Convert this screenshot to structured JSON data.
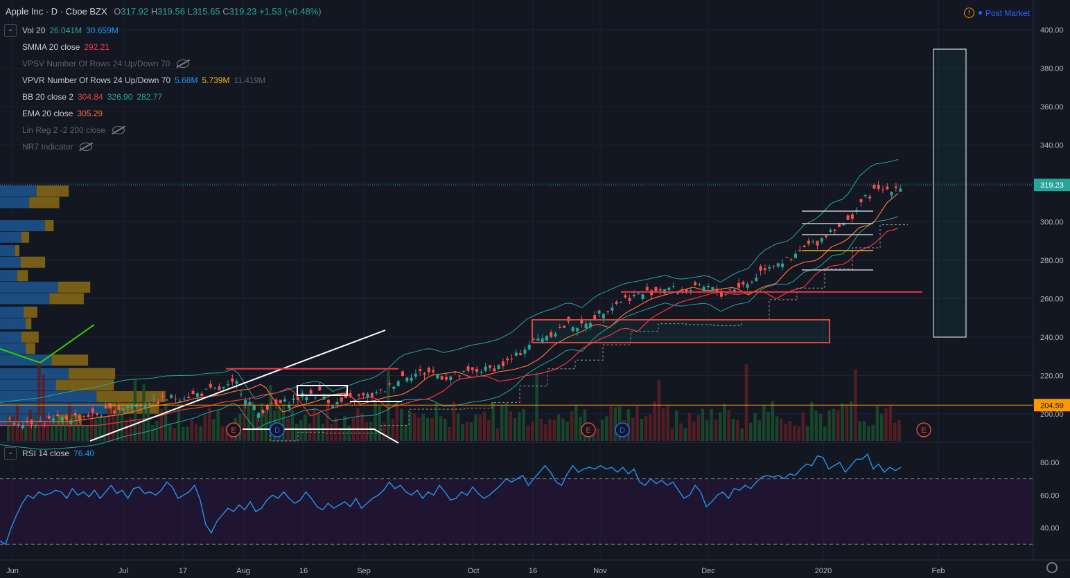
{
  "header": {
    "symbol": "Apple Inc · D · Cboe BZX",
    "o_label": "O",
    "o": "317.92",
    "h_label": "H",
    "h": "319.56",
    "l_label": "L",
    "l": "315.65",
    "c_label": "C",
    "c": "319.23",
    "change": "+1.53 (+0.48%)"
  },
  "post_market": "Post Market",
  "indicators": [
    {
      "name": "Vol 20",
      "values": [
        "26.041M",
        "30.659M"
      ],
      "colors": [
        "#26a69a",
        "#2196f3"
      ],
      "hidden": false
    },
    {
      "name": "SMMA 20 close",
      "values": [
        "292.21"
      ],
      "colors": [
        "#f23645"
      ],
      "hidden": false
    },
    {
      "name": "VPSV Number Of Rows 24 Up/Down 70",
      "values": [],
      "colors": [],
      "hidden": true
    },
    {
      "name": "VPVR Number Of Rows 24 Up/Down 70",
      "values": [
        "5.68M",
        "5.739M",
        "11.419M"
      ],
      "colors": [
        "#2196f3",
        "#f0b90b",
        "#5d606b"
      ],
      "hidden": false
    },
    {
      "name": "BB 20 close 2",
      "values": [
        "304.84",
        "326.90",
        "282.77"
      ],
      "colors": [
        "#e0443f",
        "#26a69a",
        "#26a69a"
      ],
      "hidden": false
    },
    {
      "name": "EMA 20 close",
      "values": [
        "305.29"
      ],
      "colors": [
        "#ff6d3a"
      ],
      "hidden": false
    },
    {
      "name": "Lin Reg 2 -2 200 close",
      "values": [],
      "colors": [],
      "hidden": true
    },
    {
      "name": "NR7 Indicator",
      "values": [],
      "colors": [],
      "hidden": true
    }
  ],
  "rsi_legend": {
    "name": "RSI 14 close",
    "value": "76.40"
  },
  "colors": {
    "background": "#131722",
    "up": "#26a69a",
    "down": "#ef5350",
    "price_tag": "#26a69a",
    "support_tag": "#ff9800",
    "rsi": "#2196f3",
    "rsi_band": "#1f1530"
  },
  "chart_data": [
    {
      "type": "candlestick",
      "title": "Apple Inc · D · Cboe BZX",
      "x_ticks": [
        "Jun",
        "Jul",
        "17",
        "Aug",
        "16",
        "Sep",
        "Oct",
        "16",
        "Nov",
        "Dec",
        "2020",
        "Feb"
      ],
      "y_ticks": [
        "400.00",
        "380.00",
        "360.00",
        "340.00",
        "320.00",
        "300.00",
        "280.00",
        "260.00",
        "240.00",
        "220.00",
        "200.00"
      ],
      "ylim": [
        187,
        404
      ],
      "last_price": 319.23,
      "last_price_label": "319.23",
      "support_level": 204.59,
      "support_label": "204.59",
      "resistance_level": 263.5,
      "close_path": [
        [
          0,
          196
        ],
        [
          40,
          196
        ],
        [
          60,
          196
        ],
        [
          80,
          197
        ],
        [
          100,
          198
        ],
        [
          120,
          199
        ],
        [
          140,
          200
        ],
        [
          160,
          202
        ],
        [
          180,
          204
        ],
        [
          200,
          205
        ],
        [
          220,
          206
        ],
        [
          240,
          208
        ],
        [
          260,
          209
        ],
        [
          280,
          210
        ],
        [
          300,
          212
        ],
        [
          320,
          213
        ],
        [
          340,
          216
        ],
        [
          350,
          210
        ],
        [
          360,
          205
        ],
        [
          370,
          200
        ],
        [
          380,
          203
        ],
        [
          400,
          205
        ],
        [
          420,
          207
        ],
        [
          440,
          210
        ],
        [
          460,
          211
        ],
        [
          480,
          205
        ],
        [
          500,
          207
        ],
        [
          520,
          209
        ],
        [
          540,
          210
        ],
        [
          560,
          214
        ],
        [
          580,
          220
        ],
        [
          600,
          221
        ],
        [
          620,
          222
        ],
        [
          640,
          219
        ],
        [
          660,
          220
        ],
        [
          680,
          222
        ],
        [
          700,
          223
        ],
        [
          720,
          225
        ],
        [
          740,
          229
        ],
        [
          760,
          236
        ],
        [
          780,
          240
        ],
        [
          800,
          243
        ],
        [
          820,
          247
        ],
        [
          840,
          245
        ],
        [
          860,
          252
        ],
        [
          880,
          256
        ],
        [
          900,
          260
        ],
        [
          920,
          262
        ],
        [
          940,
          264
        ],
        [
          960,
          266
        ],
        [
          980,
          264
        ],
        [
          1000,
          265
        ],
        [
          1020,
          266
        ],
        [
          1040,
          262
        ],
        [
          1060,
          266
        ],
        [
          1080,
          268
        ],
        [
          1100,
          276
        ],
        [
          1120,
          279
        ],
        [
          1140,
          280
        ],
        [
          1160,
          287
        ],
        [
          1180,
          290
        ],
        [
          1200,
          297
        ],
        [
          1220,
          299
        ],
        [
          1240,
          310
        ],
        [
          1260,
          316
        ],
        [
          1280,
          317
        ],
        [
          1300,
          319
        ]
      ],
      "volume_max_label": "30.659M",
      "vpvr_profile": [
        {
          "price": 316,
          "up": 85,
          "down": 75
        },
        {
          "price": 310,
          "up": 68,
          "down": 70
        },
        {
          "price": 298,
          "up": 105,
          "down": 20
        },
        {
          "price": 292,
          "up": 50,
          "down": 18
        },
        {
          "price": 285,
          "up": 35,
          "down": 10
        },
        {
          "price": 279,
          "up": 48,
          "down": 57
        },
        {
          "price": 272,
          "up": 40,
          "down": 25
        },
        {
          "price": 266,
          "up": 135,
          "down": 75
        },
        {
          "price": 260,
          "up": 115,
          "down": 80
        },
        {
          "price": 253,
          "up": 55,
          "down": 32
        },
        {
          "price": 247,
          "up": 60,
          "down": 13
        },
        {
          "price": 240,
          "up": 50,
          "down": 40
        },
        {
          "price": 234,
          "up": 60,
          "down": 22
        },
        {
          "price": 228,
          "up": 120,
          "down": 85
        },
        {
          "price": 221,
          "up": 160,
          "down": 108
        },
        {
          "price": 215,
          "up": 130,
          "down": 135
        },
        {
          "price": 209,
          "up": 225,
          "down": 160
        },
        {
          "price": 203,
          "up": 250,
          "down": 120
        },
        {
          "price": 197,
          "up": 130,
          "down": 60
        }
      ]
    },
    {
      "type": "line",
      "name": "RSI 14 close",
      "ylim": [
        26,
        88
      ],
      "y_ticks": [
        "80.00",
        "60.00",
        "40.00"
      ],
      "upper_band": 70,
      "lower_band": 30,
      "values": [
        32,
        30,
        40,
        48,
        55,
        60,
        58,
        62,
        60,
        61,
        63,
        62,
        58,
        64,
        60,
        62,
        59,
        63,
        58,
        62,
        66,
        61,
        63,
        58,
        64,
        65,
        61,
        62,
        60,
        63,
        68,
        65,
        58,
        60,
        62,
        66,
        57,
        42,
        37,
        44,
        48,
        52,
        50,
        54,
        51,
        56,
        50,
        52,
        57,
        60,
        58,
        62,
        58,
        55,
        57,
        62,
        58,
        53,
        51,
        55,
        52,
        54,
        56,
        53,
        58,
        52,
        55,
        58,
        60,
        63,
        68,
        64,
        66,
        62,
        60,
        63,
        58,
        62,
        60,
        66,
        62,
        57,
        58,
        62,
        60,
        65,
        61,
        58,
        60,
        63,
        66,
        70,
        68,
        70,
        72,
        66,
        70,
        74,
        78,
        74,
        68,
        66,
        73,
        78,
        74,
        76,
        77,
        76,
        78,
        76,
        77,
        74,
        77,
        73,
        76,
        68,
        66,
        70,
        67,
        69,
        66,
        68,
        63,
        58,
        60,
        66,
        62,
        53,
        56,
        60,
        62,
        58,
        64,
        63,
        66,
        64,
        68,
        71,
        72,
        71,
        72,
        70,
        73,
        72,
        76,
        79,
        78,
        84,
        83,
        76,
        78,
        80,
        74,
        78,
        82,
        82,
        85,
        76,
        79,
        74,
        77,
        75,
        77
      ]
    }
  ]
}
